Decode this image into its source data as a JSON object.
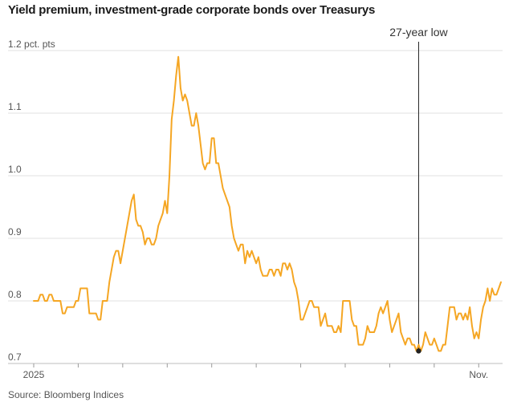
{
  "chart_data": {
    "type": "line",
    "title": "Yield premium, investment-grade corporate bonds over Treasurys",
    "source": "Source: Bloomberg Indices",
    "ylim": [
      0.7,
      1.2
    ],
    "y_ticks": [
      {
        "value": 1.2,
        "label": "1.2 pct. pts"
      },
      {
        "value": 1.1,
        "label": "1.1"
      },
      {
        "value": 1.0,
        "label": "1.0"
      },
      {
        "value": 0.9,
        "label": "0.9"
      },
      {
        "value": 0.8,
        "label": "0.8"
      },
      {
        "value": 0.7,
        "label": "0.7"
      }
    ],
    "x_ticks": [
      {
        "index": 0,
        "label": "2025"
      },
      {
        "index": 20,
        "label": ""
      },
      {
        "index": 40,
        "label": ""
      },
      {
        "index": 60,
        "label": ""
      },
      {
        "index": 80,
        "label": ""
      },
      {
        "index": 100,
        "label": ""
      },
      {
        "index": 120,
        "label": ""
      },
      {
        "index": 140,
        "label": ""
      },
      {
        "index": 160,
        "label": ""
      },
      {
        "index": 180,
        "label": ""
      },
      {
        "index": 200,
        "label": "Nov."
      }
    ],
    "grid": true,
    "line_color": "#f5a623",
    "annotation": {
      "label": "27-year low",
      "index": 173,
      "value": 0.72
    },
    "series": [
      {
        "name": "",
        "values": [
          0.8,
          0.8,
          0.8,
          0.81,
          0.81,
          0.8,
          0.8,
          0.81,
          0.81,
          0.8,
          0.8,
          0.8,
          0.8,
          0.78,
          0.78,
          0.79,
          0.79,
          0.79,
          0.79,
          0.8,
          0.8,
          0.82,
          0.82,
          0.82,
          0.82,
          0.78,
          0.78,
          0.78,
          0.78,
          0.77,
          0.77,
          0.8,
          0.8,
          0.8,
          0.83,
          0.85,
          0.87,
          0.88,
          0.88,
          0.86,
          0.88,
          0.9,
          0.92,
          0.94,
          0.96,
          0.97,
          0.93,
          0.92,
          0.92,
          0.91,
          0.89,
          0.9,
          0.9,
          0.89,
          0.89,
          0.9,
          0.92,
          0.93,
          0.94,
          0.96,
          0.94,
          1.0,
          1.09,
          1.12,
          1.16,
          1.19,
          1.14,
          1.12,
          1.13,
          1.12,
          1.1,
          1.08,
          1.08,
          1.1,
          1.08,
          1.05,
          1.02,
          1.01,
          1.02,
          1.02,
          1.06,
          1.06,
          1.02,
          1.02,
          1.0,
          0.98,
          0.97,
          0.96,
          0.95,
          0.92,
          0.9,
          0.89,
          0.88,
          0.89,
          0.89,
          0.86,
          0.88,
          0.87,
          0.88,
          0.87,
          0.86,
          0.87,
          0.85,
          0.84,
          0.84,
          0.84,
          0.85,
          0.85,
          0.84,
          0.85,
          0.85,
          0.84,
          0.86,
          0.86,
          0.85,
          0.86,
          0.85,
          0.83,
          0.82,
          0.8,
          0.77,
          0.77,
          0.78,
          0.79,
          0.8,
          0.8,
          0.79,
          0.79,
          0.79,
          0.76,
          0.77,
          0.78,
          0.76,
          0.76,
          0.76,
          0.75,
          0.75,
          0.76,
          0.75,
          0.8,
          0.8,
          0.8,
          0.8,
          0.77,
          0.76,
          0.76,
          0.73,
          0.73,
          0.73,
          0.74,
          0.76,
          0.75,
          0.75,
          0.75,
          0.76,
          0.78,
          0.79,
          0.78,
          0.79,
          0.8,
          0.77,
          0.75,
          0.76,
          0.77,
          0.78,
          0.75,
          0.74,
          0.73,
          0.74,
          0.74,
          0.73,
          0.73,
          0.72,
          0.73,
          0.72,
          0.73,
          0.75,
          0.74,
          0.73,
          0.73,
          0.74,
          0.73,
          0.72,
          0.72,
          0.73,
          0.73,
          0.76,
          0.79,
          0.79,
          0.79,
          0.77,
          0.78,
          0.78,
          0.77,
          0.78,
          0.77,
          0.79,
          0.76,
          0.74,
          0.75,
          0.74,
          0.77,
          0.79,
          0.8,
          0.82,
          0.8,
          0.82,
          0.81,
          0.81,
          0.82,
          0.83
        ]
      }
    ]
  }
}
